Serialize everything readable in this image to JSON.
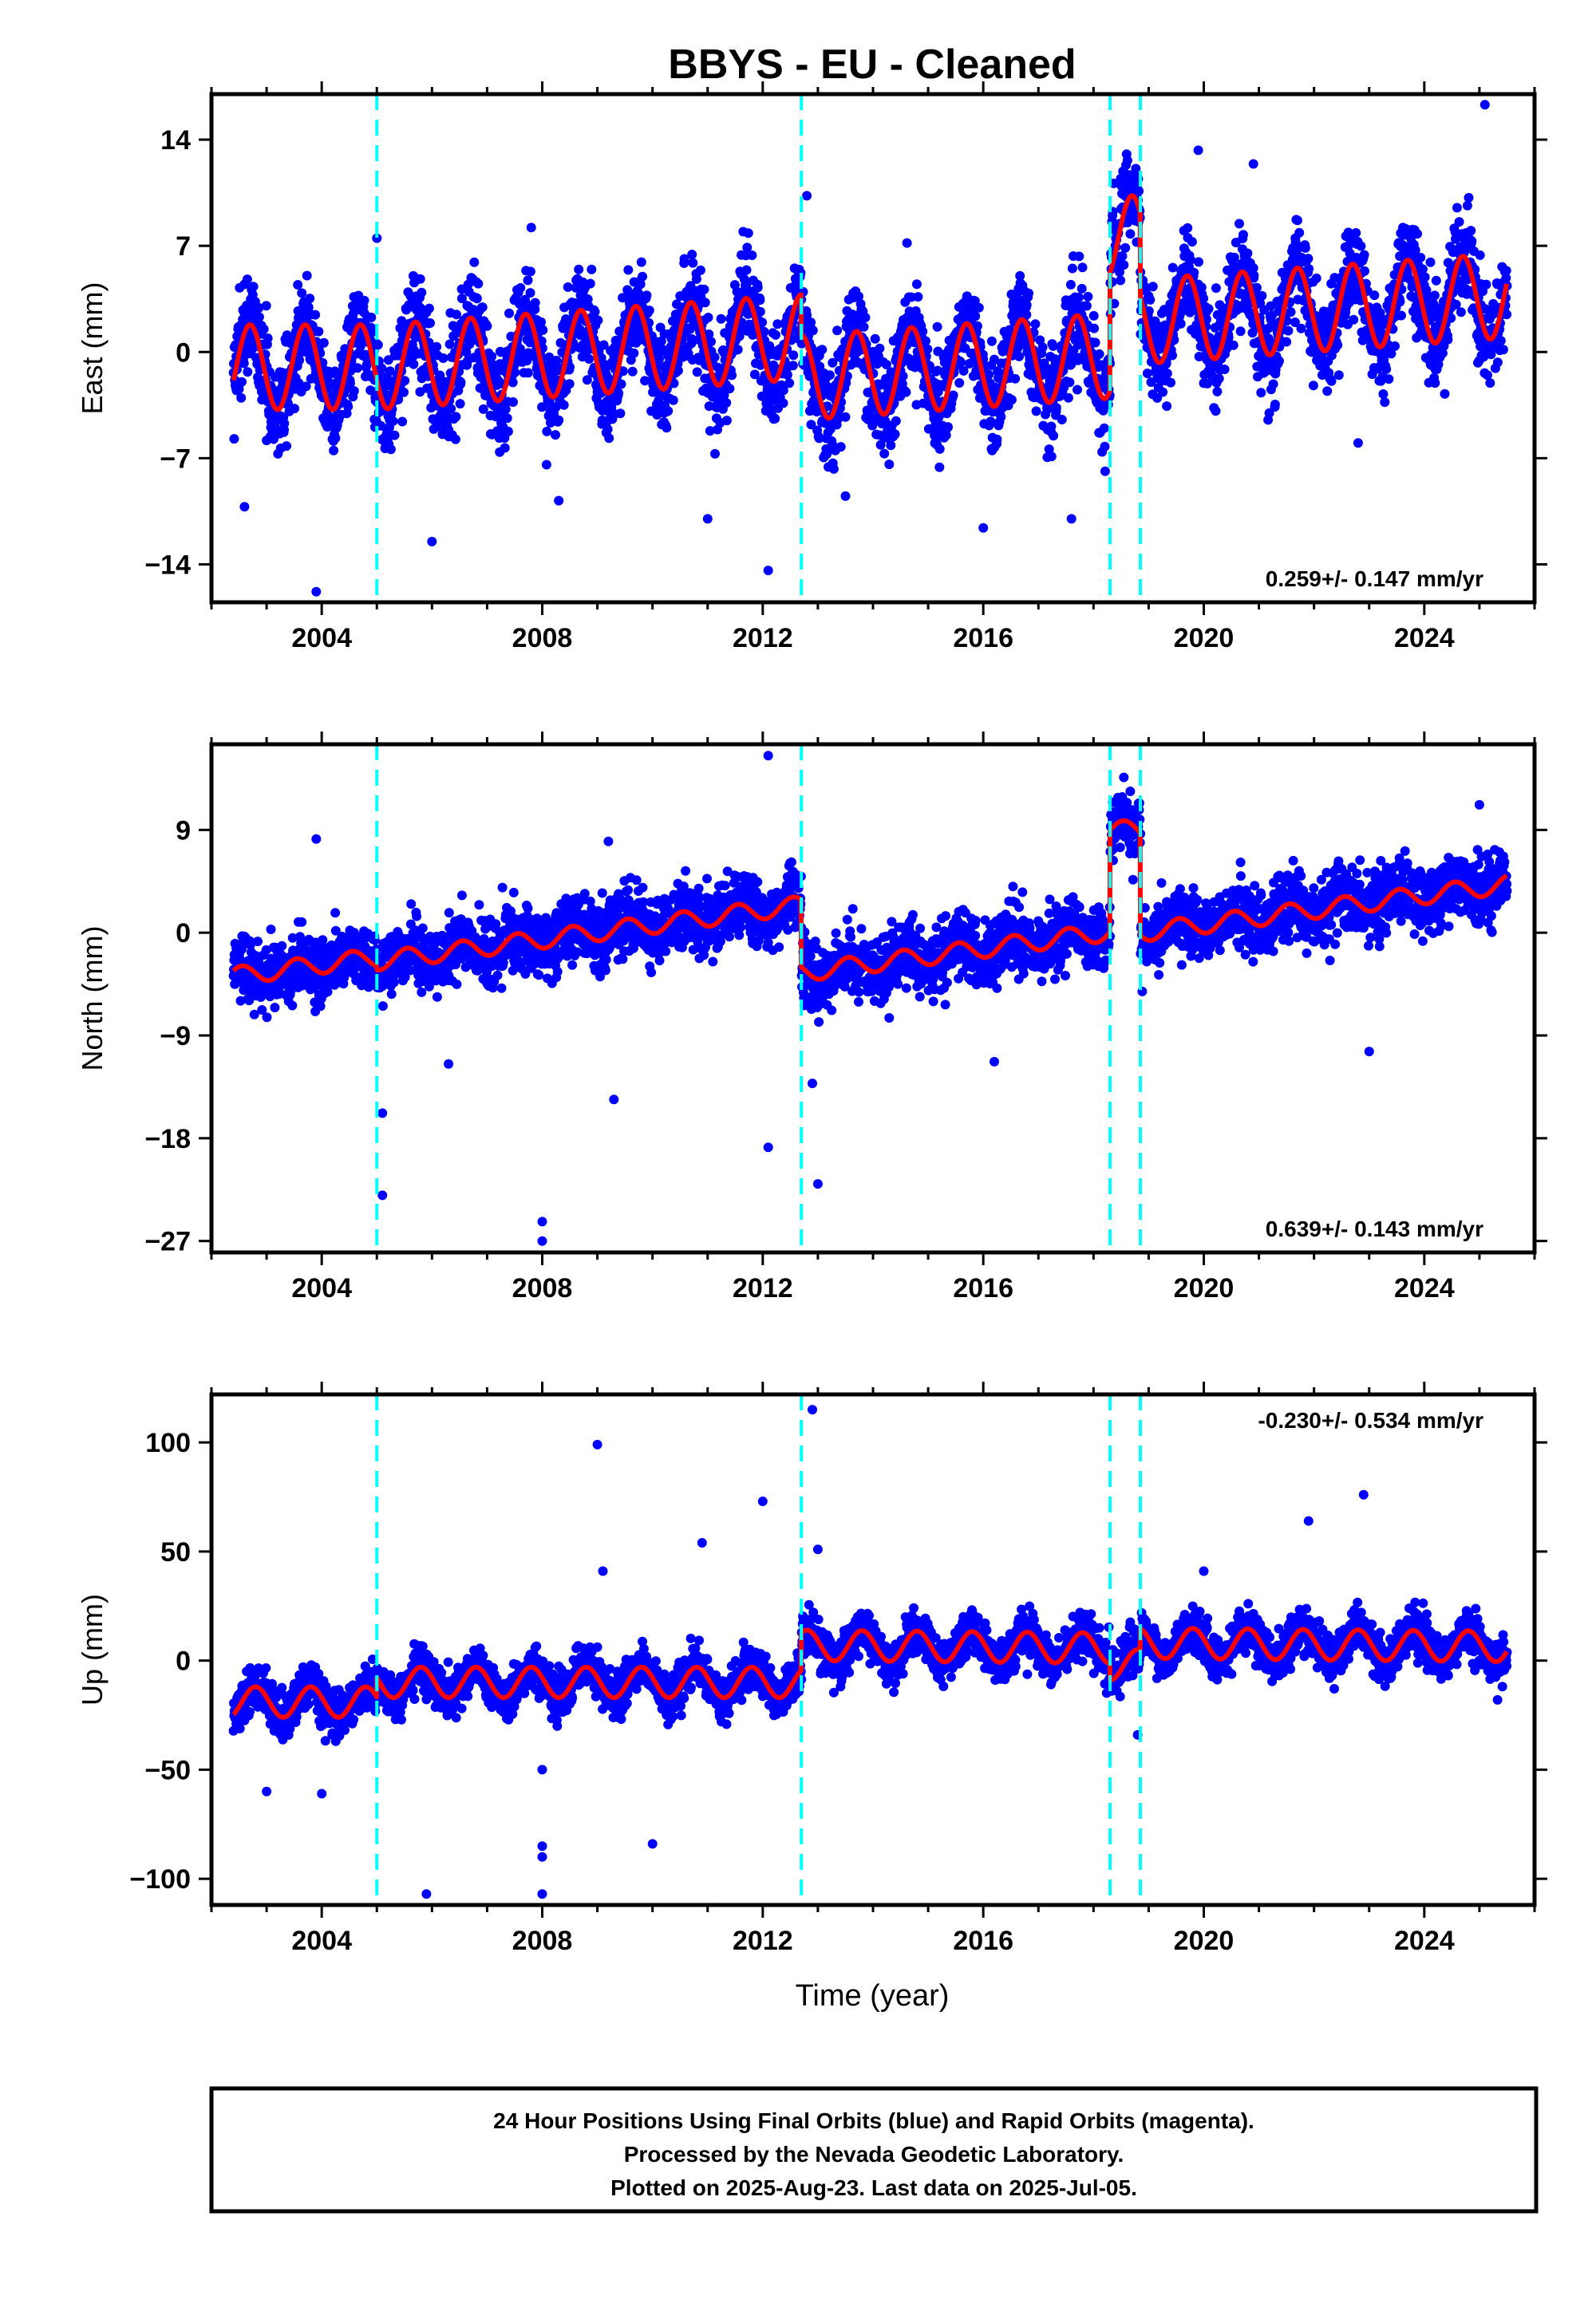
{
  "title": "BBYS  - EU - Cleaned",
  "xlabel": "Time (year)",
  "footer": [
    "24 Hour Positions Using Final Orbits (blue) and Rapid Orbits (magenta).",
    "Processed by the Nevada Geodetic Laboratory.",
    "Plotted on 2025-Aug-23. Last data on 2025-Jul-05."
  ],
  "colors": {
    "points": "#0000ff",
    "model": "#ff0000",
    "breaks": "#00ffff",
    "frame": "#000000"
  },
  "chart_data": [
    {
      "type": "scatter",
      "panel": "east",
      "ylabel": "East (mm)",
      "rate": "0.259+/- 0.147 mm/yr",
      "xlim": [
        2002.0,
        2026.0
      ],
      "ylim": [
        -16.5,
        17.0
      ],
      "xticks": [
        2004,
        2008,
        2012,
        2016,
        2020,
        2024
      ],
      "yticks": [
        -14,
        -7,
        0,
        7,
        14
      ],
      "ytick_labels": [
        "−14",
        "−7",
        "0",
        "7",
        "14"
      ],
      "breaks": [
        2005.0,
        2012.7,
        2018.3,
        2018.85
      ],
      "data_range": [
        2002.4,
        2025.5
      ],
      "model": {
        "segments": [
          {
            "x": [
              2002.4,
              2005.0
            ],
            "start": -1.0,
            "rate": 0.0
          },
          {
            "x": [
              2005.0,
              2012.7
            ],
            "start": -1.0,
            "rate": 0.259
          },
          {
            "x": [
              2012.7,
              2018.3
            ],
            "start": -1.7,
            "rate": 0.259
          },
          {
            "x": [
              2018.3,
              2018.85
            ],
            "start": 7.5,
            "rate": 0.0
          },
          {
            "x": [
              2018.85,
              2025.5
            ],
            "start": 2.0,
            "rate": 0.259
          }
        ],
        "amplitude": 2.8,
        "phase_year": 0.45
      },
      "scatter_sd": 1.6,
      "outliers": [
        [
          2003.9,
          -15.8
        ],
        [
          2002.6,
          -10.2
        ],
        [
          2006.0,
          -12.5
        ],
        [
          2007.8,
          8.2
        ],
        [
          2008.3,
          -9.8
        ],
        [
          2011.0,
          -11.0
        ],
        [
          2012.1,
          -14.4
        ],
        [
          2012.8,
          10.3
        ],
        [
          2013.5,
          -9.5
        ],
        [
          2016.0,
          -11.6
        ],
        [
          2017.6,
          -11.0
        ],
        [
          2019.9,
          13.3
        ],
        [
          2020.9,
          12.4
        ],
        [
          2022.8,
          -6.0
        ],
        [
          2025.1,
          16.3
        ],
        [
          2005.0,
          7.5
        ]
      ]
    },
    {
      "type": "scatter",
      "panel": "north",
      "ylabel": "North (mm)",
      "rate": "0.639+/- 0.143 mm/yr",
      "xlim": [
        2002.0,
        2026.0
      ],
      "ylim": [
        -28.0,
        16.5
      ],
      "xticks": [
        2004,
        2008,
        2012,
        2016,
        2020,
        2024
      ],
      "yticks": [
        -27,
        -18,
        -9,
        0,
        9
      ],
      "ytick_labels": [
        "−27",
        "−18",
        "−9",
        "0",
        "9"
      ],
      "breaks": [
        2005.0,
        2012.7,
        2018.3,
        2018.85
      ],
      "data_range": [
        2002.4,
        2025.5
      ],
      "model": {
        "segments": [
          {
            "x": [
              2002.4,
              2005.0
            ],
            "start": -3.8,
            "rate": 0.639
          },
          {
            "x": [
              2005.0,
              2012.7
            ],
            "start": -2.5,
            "rate": 0.639
          },
          {
            "x": [
              2012.7,
              2018.3
            ],
            "start": -3.5,
            "rate": 0.639
          },
          {
            "x": [
              2018.3,
              2018.85
            ],
            "start": 9.0,
            "rate": 0.0
          },
          {
            "x": [
              2018.85,
              2025.5
            ],
            "start": 0.0,
            "rate": 0.639
          }
        ],
        "amplitude": 0.8,
        "phase_year": 0.3
      },
      "scatter_sd": 1.4,
      "outliers": [
        [
          2005.1,
          -23.0
        ],
        [
          2008.0,
          -27.0
        ],
        [
          2008.0,
          -25.3
        ],
        [
          2009.3,
          -14.6
        ],
        [
          2012.1,
          15.5
        ],
        [
          2012.1,
          -18.8
        ],
        [
          2012.9,
          -13.2
        ],
        [
          2013.0,
          -22.0
        ],
        [
          2005.1,
          -15.8
        ],
        [
          2006.3,
          -11.5
        ],
        [
          2009.2,
          8.0
        ],
        [
          2003.9,
          8.2
        ],
        [
          2023.0,
          -10.4
        ],
        [
          2016.2,
          -11.3
        ],
        [
          2025.0,
          11.2
        ]
      ]
    },
    {
      "type": "scatter",
      "panel": "up",
      "ylabel": "Up (mm)",
      "rate": "-0.230+/- 0.534 mm/yr",
      "xlim": [
        2002.0,
        2026.0
      ],
      "ylim": [
        -112.0,
        122.0
      ],
      "xticks": [
        2004,
        2008,
        2012,
        2016,
        2020,
        2024
      ],
      "yticks": [
        -100,
        -50,
        0,
        50,
        100
      ],
      "ytick_labels": [
        "−100",
        "−50",
        "0",
        "50",
        "100"
      ],
      "breaks": [
        2005.0,
        2012.7,
        2018.3,
        2018.85
      ],
      "data_range": [
        2002.4,
        2025.5
      ],
      "model": {
        "segments": [
          {
            "x": [
              2002.4,
              2005.0
            ],
            "start": -19.0,
            "rate": 0.0
          },
          {
            "x": [
              2005.0,
              2012.7
            ],
            "start": -10.0,
            "rate": 0.0
          },
          {
            "x": [
              2012.7,
              2018.3
            ],
            "start": 7.0,
            "rate": -0.23
          },
          {
            "x": [
              2018.3,
              2018.85
            ],
            "start": -2.0,
            "rate": 0.0
          },
          {
            "x": [
              2018.85,
              2025.5
            ],
            "start": 8.0,
            "rate": -0.23
          }
        ],
        "amplitude": 7.0,
        "phase_year": 0.55
      },
      "scatter_sd": 5.0,
      "outliers": [
        [
          2005.9,
          -107.0
        ],
        [
          2008.0,
          -107.0
        ],
        [
          2008.0,
          -85.0
        ],
        [
          2008.0,
          -90.0
        ],
        [
          2009.0,
          99.0
        ],
        [
          2009.1,
          41.0
        ],
        [
          2010.0,
          -84.0
        ],
        [
          2010.9,
          54.0
        ],
        [
          2012.0,
          73.0
        ],
        [
          2012.9,
          115.0
        ],
        [
          2013.0,
          51.0
        ],
        [
          2021.9,
          64.0
        ],
        [
          2022.9,
          76.0
        ],
        [
          2003.0,
          -60.0
        ],
        [
          2004.0,
          -61.0
        ],
        [
          2018.8,
          -34.0
        ],
        [
          2020.0,
          41.0
        ],
        [
          2008.0,
          -50.0
        ]
      ]
    }
  ]
}
